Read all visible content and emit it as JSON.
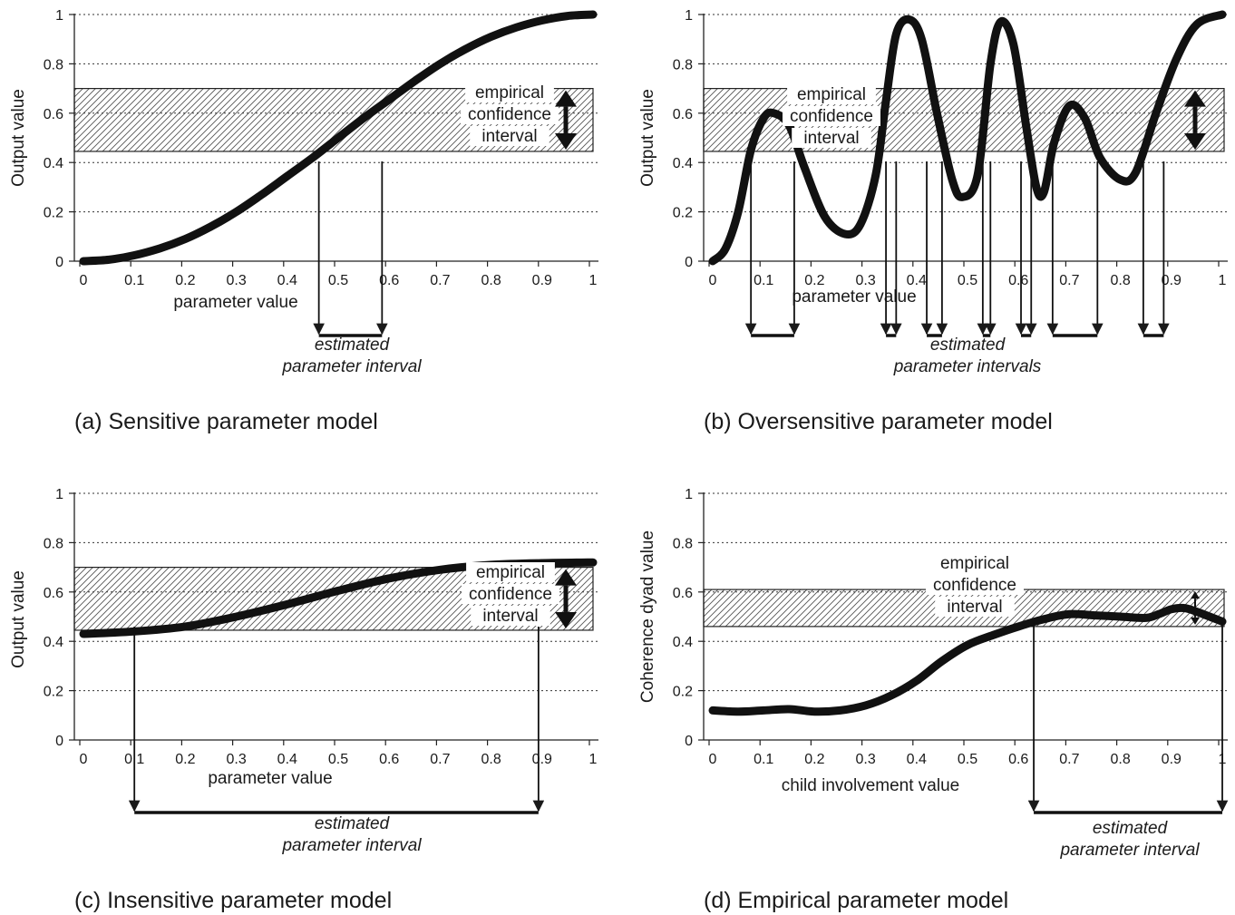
{
  "chart_data": [
    {
      "type": "line",
      "caption": "(a) Sensitive parameter model",
      "xlabel": "parameter value",
      "ylabel": "Output value",
      "xticks": [
        "0",
        "0.1",
        "0.2",
        "0.3",
        "0.4",
        "0.5",
        "0.6",
        "0.7",
        "0.8",
        "0.9",
        "1"
      ],
      "yticks": [
        "0",
        "0.2",
        "0.4",
        "0.6",
        "0.8",
        "1"
      ],
      "xlim": [
        0,
        1
      ],
      "ylim": [
        0,
        1
      ],
      "grid": "horizontal dotted",
      "confidence_band": [
        0.445,
        0.7
      ],
      "band_label": [
        "empirical",
        "confidence",
        "interval"
      ],
      "interval_label": [
        "estimated",
        "parameter interval"
      ],
      "intervals": [
        [
          0.462,
          0.586
        ]
      ],
      "series": [
        {
          "x": [
            0,
            0.05,
            0.1,
            0.15,
            0.2,
            0.25,
            0.3,
            0.35,
            0.4,
            0.45,
            0.5,
            0.55,
            0.6,
            0.65,
            0.7,
            0.75,
            0.8,
            0.85,
            0.9,
            0.95,
            1
          ],
          "values": [
            0,
            0.006,
            0.024,
            0.052,
            0.09,
            0.14,
            0.2,
            0.27,
            0.345,
            0.42,
            0.5,
            0.58,
            0.655,
            0.73,
            0.8,
            0.86,
            0.91,
            0.948,
            0.976,
            0.994,
            1
          ]
        }
      ]
    },
    {
      "type": "line",
      "caption": "(b) Oversensitive parameter model",
      "xlabel": "parameter value",
      "ylabel": "Output value",
      "xticks": [
        "0",
        "0.1",
        "0.2",
        "0.3",
        "0.4",
        "0.5",
        "0.6",
        "0.7",
        "0.8",
        "0.9",
        "1"
      ],
      "yticks": [
        "0",
        "0.2",
        "0.4",
        "0.6",
        "0.8",
        "1"
      ],
      "xlim": [
        0,
        1
      ],
      "ylim": [
        0,
        1
      ],
      "grid": "horizontal dotted",
      "confidence_band": [
        0.445,
        0.7
      ],
      "band_label": [
        "empirical",
        "confidence",
        "interval"
      ],
      "interval_label": [
        "estimated",
        "parameter intervals"
      ],
      "intervals": [
        [
          0.075,
          0.16
        ],
        [
          0.34,
          0.36
        ],
        [
          0.42,
          0.45
        ],
        [
          0.53,
          0.545
        ],
        [
          0.605,
          0.625
        ],
        [
          0.667,
          0.755
        ],
        [
          0.845,
          0.885
        ]
      ],
      "series": [
        {
          "x": [
            0,
            0.025,
            0.05,
            0.075,
            0.1,
            0.12,
            0.15,
            0.18,
            0.22,
            0.26,
            0.29,
            0.32,
            0.34,
            0.36,
            0.385,
            0.41,
            0.44,
            0.47,
            0.49,
            0.52,
            0.545,
            0.565,
            0.59,
            0.615,
            0.635,
            0.65,
            0.67,
            0.7,
            0.73,
            0.76,
            0.8,
            0.83,
            0.87,
            0.91,
            0.95,
            1
          ],
          "values": [
            0,
            0.05,
            0.2,
            0.45,
            0.58,
            0.6,
            0.55,
            0.38,
            0.18,
            0.11,
            0.15,
            0.35,
            0.65,
            0.92,
            0.98,
            0.9,
            0.6,
            0.33,
            0.26,
            0.35,
            0.8,
            0.97,
            0.88,
            0.55,
            0.3,
            0.28,
            0.48,
            0.63,
            0.58,
            0.42,
            0.33,
            0.36,
            0.6,
            0.82,
            0.96,
            1
          ]
        }
      ]
    },
    {
      "type": "line",
      "caption": "(c) Insensitive parameter model",
      "xlabel": "parameter value",
      "ylabel": "Output value",
      "xticks": [
        "0",
        "0.1",
        "0.2",
        "0.3",
        "0.4",
        "0.5",
        "0.6",
        "0.7",
        "0.8",
        "0.9",
        "1"
      ],
      "yticks": [
        "0",
        "0.2",
        "0.4",
        "0.6",
        "0.8",
        "1"
      ],
      "xlim": [
        0,
        1
      ],
      "ylim": [
        0,
        1
      ],
      "grid": "horizontal dotted",
      "confidence_band": [
        0.445,
        0.7
      ],
      "band_label": [
        "empirical",
        "confidence",
        "interval"
      ],
      "interval_label": [
        "estimated",
        "parameter interval"
      ],
      "intervals": [
        [
          0.1,
          0.893
        ]
      ],
      "series": [
        {
          "x": [
            0,
            0.1,
            0.2,
            0.3,
            0.4,
            0.5,
            0.6,
            0.7,
            0.8,
            0.9,
            1
          ],
          "values": [
            0.43,
            0.44,
            0.46,
            0.5,
            0.55,
            0.605,
            0.655,
            0.69,
            0.71,
            0.717,
            0.72
          ]
        }
      ]
    },
    {
      "type": "line",
      "caption": "(d) Empirical parameter model",
      "xlabel": "child involvement value",
      "ylabel": "Coherence dyad value",
      "xticks": [
        "0",
        "0.1",
        "0.2",
        "0.3",
        "0.4",
        "0.5",
        "0.6",
        "0.7",
        "0.8",
        "0.9",
        "1"
      ],
      "yticks": [
        "0",
        "0.2",
        "0.4",
        "0.6",
        "0.8",
        "1"
      ],
      "xlim": [
        0,
        1
      ],
      "ylim": [
        0,
        1
      ],
      "grid": "horizontal dotted",
      "confidence_band": [
        0.46,
        0.61
      ],
      "band_label": [
        "empirical",
        "confidence",
        "interval"
      ],
      "interval_label": [
        "estimated",
        "parameter interval"
      ],
      "intervals": [
        [
          0.63,
          1
        ]
      ],
      "series": [
        {
          "x": [
            0,
            0.05,
            0.1,
            0.15,
            0.2,
            0.25,
            0.3,
            0.35,
            0.4,
            0.45,
            0.5,
            0.55,
            0.6,
            0.65,
            0.7,
            0.75,
            0.8,
            0.85,
            0.875,
            0.9,
            0.925,
            0.95,
            1
          ],
          "values": [
            0.12,
            0.115,
            0.12,
            0.125,
            0.115,
            0.12,
            0.14,
            0.18,
            0.24,
            0.32,
            0.385,
            0.425,
            0.46,
            0.49,
            0.51,
            0.505,
            0.5,
            0.495,
            0.51,
            0.53,
            0.535,
            0.52,
            0.48
          ]
        }
      ]
    }
  ]
}
